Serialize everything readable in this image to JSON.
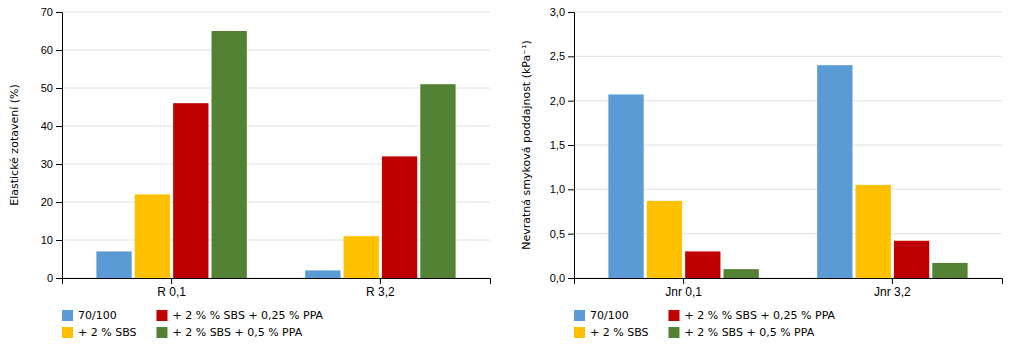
{
  "chart_data": [
    {
      "type": "bar",
      "ylabel": "Elastické zotavení (%)",
      "categories": [
        "R 0,1",
        "R 3,2"
      ],
      "series": [
        {
          "name": "70/100",
          "color": "#5B9BD5",
          "values": [
            7,
            2
          ]
        },
        {
          "name": "+ 2 % SBS",
          "color": "#FFC000",
          "values": [
            22,
            11
          ]
        },
        {
          "name": "+ 2 % % SBS + 0,25 % PPA",
          "color": "#C00000",
          "values": [
            46,
            32
          ]
        },
        {
          "name": "+ 2 % SBS + 0,5 % PPA",
          "color": "#548235",
          "values": [
            65,
            51
          ]
        }
      ],
      "ylim": [
        0,
        70
      ],
      "yticks": [
        0,
        10,
        20,
        30,
        40,
        50,
        60,
        70
      ],
      "grid": true,
      "legend": "bottom"
    },
    {
      "type": "bar",
      "ylabel": "Nevratná smyková poddajnost (kPa⁻¹)",
      "categories": [
        "Jnr 0,1",
        "Jnr 3,2"
      ],
      "series": [
        {
          "name": "70/100",
          "color": "#5B9BD5",
          "values": [
            2.07,
            2.4
          ]
        },
        {
          "name": "+ 2 % SBS",
          "color": "#FFC000",
          "values": [
            0.87,
            1.05
          ]
        },
        {
          "name": "+ 2 % % SBS + 0,25 % PPA",
          "color": "#C00000",
          "values": [
            0.3,
            0.42
          ]
        },
        {
          "name": "+ 2 % SBS + 0,5 % PPA",
          "color": "#548235",
          "values": [
            0.1,
            0.17
          ]
        }
      ],
      "ylim": [
        0,
        3.0
      ],
      "yticks": [
        {
          "value": 0.0,
          "label": "0,0"
        },
        {
          "value": 0.5,
          "label": "0,5"
        },
        {
          "value": 1.0,
          "label": "1,0"
        },
        {
          "value": 1.5,
          "label": "1,5"
        },
        {
          "value": 2.0,
          "label": "2,0"
        },
        {
          "value": 2.5,
          "label": "2,5"
        },
        {
          "value": 3.0,
          "label": "3,0"
        }
      ],
      "grid": true,
      "legend": "bottom"
    }
  ]
}
